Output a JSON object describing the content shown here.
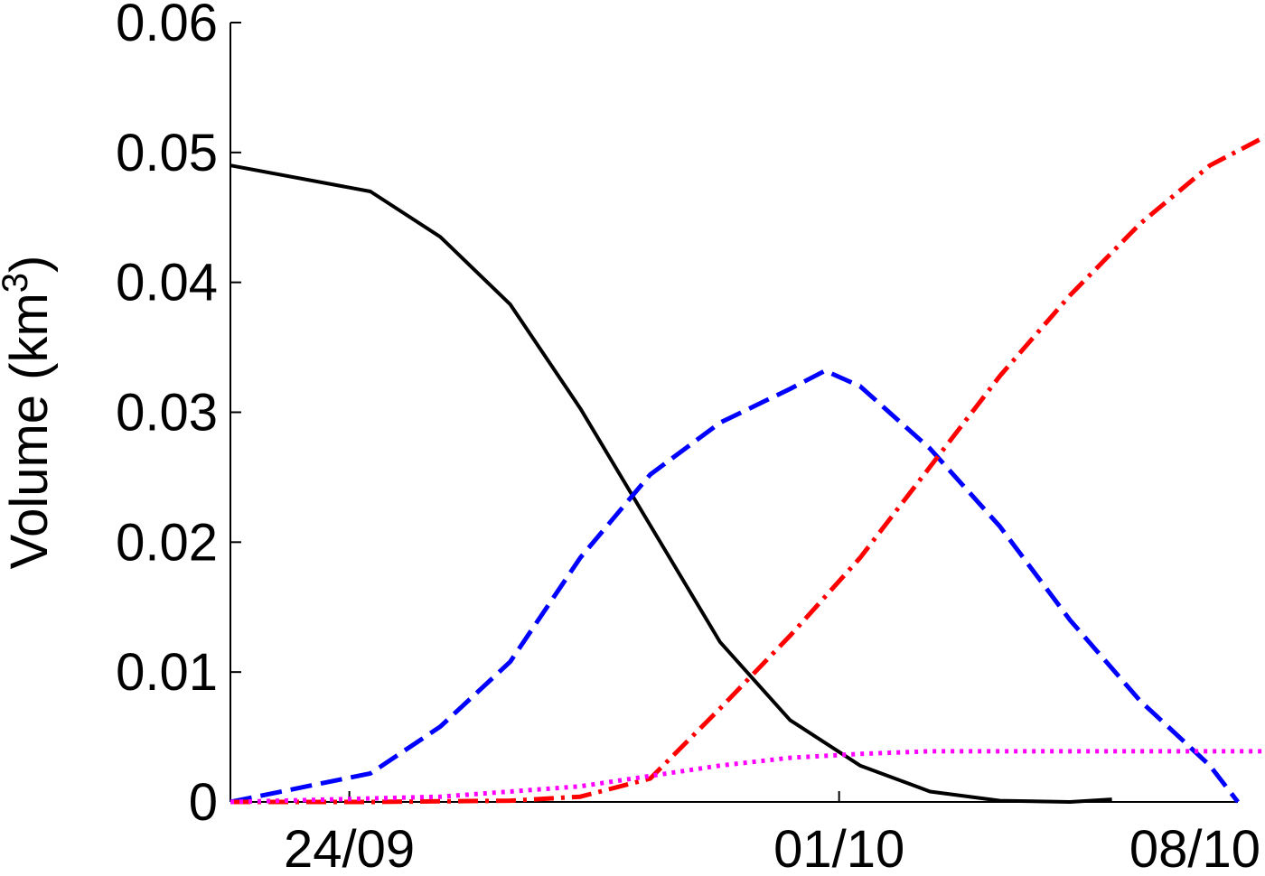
{
  "chart_data": {
    "type": "line",
    "title": "",
    "xlabel": "",
    "ylabel": "Volume (km",
    "ylabel_sup": "3",
    "ylabel_close": ")",
    "x_unit": "days since 24/09",
    "xlim": [
      -1.7,
      12.7
    ],
    "ylim": [
      0,
      0.06
    ],
    "grid": false,
    "x_ticks": [
      {
        "value": 0,
        "label": "24/09"
      },
      {
        "value": 7,
        "label": "01/10"
      },
      {
        "value": 14,
        "label": "08/10"
      }
    ],
    "y_ticks": [
      {
        "value": 0,
        "label": "0"
      },
      {
        "value": 0.01,
        "label": "0.01"
      },
      {
        "value": 0.02,
        "label": "0.02"
      },
      {
        "value": 0.03,
        "label": "0.03"
      },
      {
        "value": 0.04,
        "label": "0.04"
      },
      {
        "value": 0.05,
        "label": "0.05"
      },
      {
        "value": 0.06,
        "label": "0.06"
      }
    ],
    "series": [
      {
        "color": "#000000",
        "style": "solid",
        "x": [
          -1.7,
          0.3,
          1.3,
          2.3,
          3.3,
          4.3,
          5.3,
          6.3,
          7.3,
          8.3,
          9.3,
          10.3,
          10.9
        ],
        "y": [
          0.049,
          0.047,
          0.0435,
          0.0383,
          0.0303,
          0.0213,
          0.0123,
          0.0063,
          0.0028,
          0.0008,
          0.0001,
          0.0,
          0.0002
        ]
      },
      {
        "color": "#0000ff",
        "style": "dashed",
        "x": [
          -1.7,
          0.3,
          1.3,
          2.3,
          3.3,
          4.3,
          5.3,
          6.3,
          6.8,
          7.3,
          8.3,
          9.3,
          10.3,
          11.3,
          12.3,
          12.7
        ],
        "y": [
          0.0,
          0.0022,
          0.0058,
          0.0108,
          0.0188,
          0.0252,
          0.0292,
          0.0318,
          0.0332,
          0.032,
          0.0272,
          0.0212,
          0.014,
          0.0078,
          0.0028,
          0.0
        ]
      },
      {
        "color": "#ff0000",
        "style": "dashdot",
        "x": [
          -1.7,
          0.3,
          2.3,
          3.3,
          4.3,
          5.3,
          6.3,
          7.3,
          8.3,
          9.3,
          10.3,
          11.3,
          12.3,
          13.3,
          14.3
        ],
        "y": [
          0.0,
          0.0,
          0.0001,
          0.0004,
          0.0018,
          0.0072,
          0.0128,
          0.0188,
          0.0258,
          0.0328,
          0.039,
          0.0445,
          0.049,
          0.0518,
          0.053
        ]
      },
      {
        "color": "#ff00ff",
        "style": "dotted",
        "x": [
          -1.7,
          1.3,
          3.3,
          5.3,
          6.3,
          7.3,
          8.3,
          10.3,
          12.3,
          14.3
        ],
        "y": [
          0.0,
          0.0004,
          0.0012,
          0.0028,
          0.0034,
          0.0037,
          0.0039,
          0.0039,
          0.0039,
          0.0039
        ]
      }
    ]
  }
}
